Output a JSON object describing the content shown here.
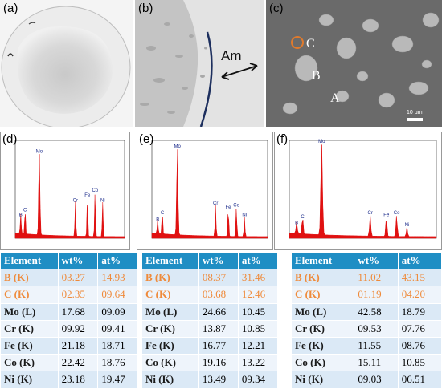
{
  "panels": {
    "a": {
      "label": "(a)"
    },
    "b": {
      "label": "(b)",
      "annotation": "Am"
    },
    "c": {
      "label": "(c)",
      "phase_a": "A",
      "phase_b": "B",
      "phase_c": "C",
      "scale": "10 μm"
    }
  },
  "spectra": [
    {
      "label": "(d)",
      "peaks": [
        "B",
        "C",
        "Mo",
        "Cr",
        "Fe",
        "Co",
        "Ni"
      ]
    },
    {
      "label": "(e)",
      "peaks": [
        "B",
        "C",
        "Mo",
        "Cr",
        "Fe",
        "Co",
        "Ni"
      ]
    },
    {
      "label": "(f)",
      "peaks": [
        "B",
        "C",
        "Mo",
        "Cr",
        "Fe",
        "Co",
        "Ni"
      ]
    }
  ],
  "colors": {
    "header": "#1f8ec4",
    "highlight": "#ef8a3a",
    "spectrum": "#e01010"
  },
  "tables": [
    {
      "header": [
        "Element",
        "wt%",
        "at%"
      ],
      "rows": [
        [
          "B (K)",
          "03.27",
          "14.93"
        ],
        [
          "C (K)",
          "02.35",
          "09.64"
        ],
        [
          "Mo (L)",
          "17.68",
          "09.09"
        ],
        [
          "Cr (K)",
          "09.92",
          "09.41"
        ],
        [
          "Fe (K)",
          "21.18",
          "18.71"
        ],
        [
          "Co (K)",
          "22.42",
          "18.76"
        ],
        [
          "Ni (K)",
          "23.18",
          "19.47"
        ]
      ]
    },
    {
      "header": [
        "Element",
        "wt%",
        "at%"
      ],
      "rows": [
        [
          "B (K)",
          "08.37",
          "31.46"
        ],
        [
          "C (K)",
          "03.68",
          "12.46"
        ],
        [
          "Mo (L)",
          "24.66",
          "10.45"
        ],
        [
          "Cr (K)",
          "13.87",
          "10.85"
        ],
        [
          "Fe (K)",
          "16.77",
          "12.21"
        ],
        [
          "Co (K)",
          "19.16",
          "13.22"
        ],
        [
          "Ni (K)",
          "13.49",
          "09.34"
        ]
      ]
    },
    {
      "header": [
        "Element",
        "wt%",
        "at%"
      ],
      "rows": [
        [
          "B (K)",
          "11.02",
          "43.15"
        ],
        [
          "C (K)",
          "01.19",
          "04.20"
        ],
        [
          "Mo (L)",
          "42.58",
          "18.79"
        ],
        [
          "Cr (K)",
          "09.53",
          "07.76"
        ],
        [
          "Fe (K)",
          "11.55",
          "08.76"
        ],
        [
          "Co (K)",
          "15.11",
          "10.85"
        ],
        [
          "Ni (K)",
          "09.03",
          "06.51"
        ]
      ]
    }
  ]
}
